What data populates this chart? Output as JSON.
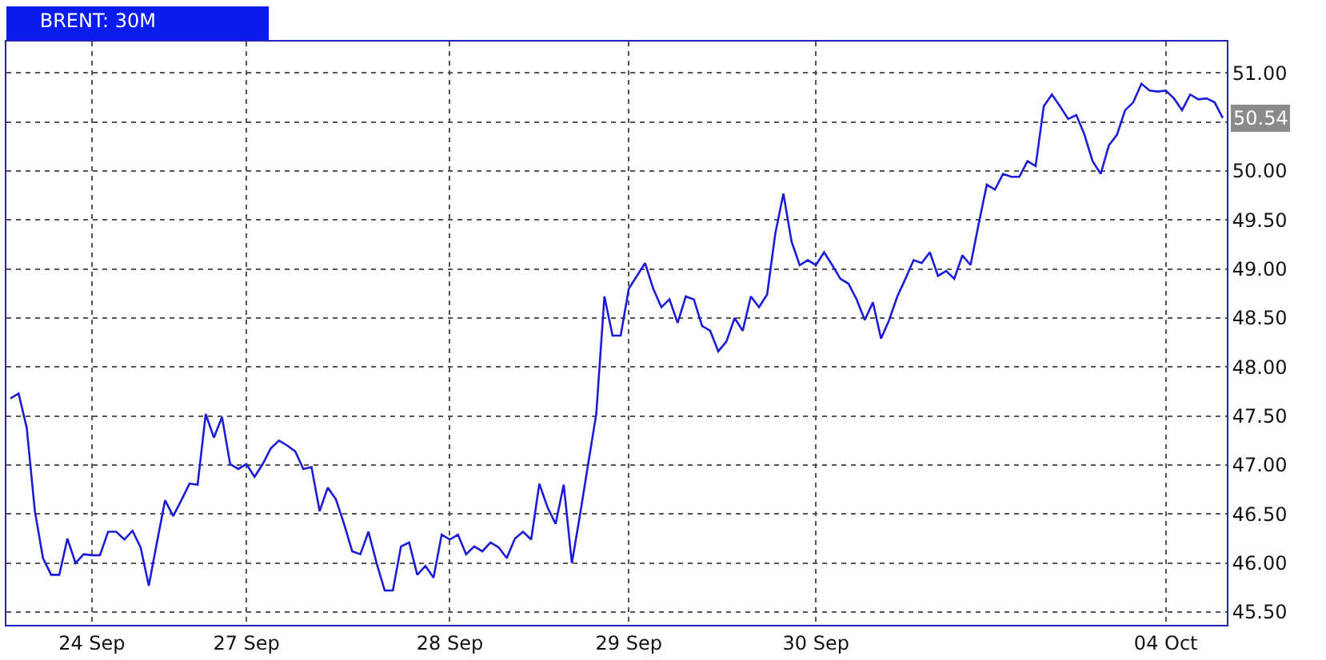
{
  "chart_data": {
    "type": "line",
    "title": "BRENT: 30M",
    "categories": [
      null,
      null,
      null,
      null,
      null,
      null,
      null,
      null,
      null,
      null,
      "24 Sep",
      null,
      null,
      null,
      null,
      null,
      null,
      null,
      null,
      null,
      null,
      null,
      null,
      null,
      null,
      null,
      null,
      null,
      null,
      "27 Sep",
      null,
      null,
      null,
      null,
      null,
      null,
      null,
      null,
      null,
      null,
      null,
      null,
      null,
      null,
      null,
      null,
      null,
      null,
      null,
      null,
      null,
      null,
      null,
      null,
      "28 Sep",
      null,
      null,
      null,
      null,
      null,
      null,
      null,
      null,
      null,
      null,
      null,
      null,
      null,
      null,
      null,
      null,
      null,
      null,
      null,
      null,
      null,
      "29 Sep",
      null,
      null,
      null,
      null,
      null,
      null,
      null,
      null,
      null,
      null,
      null,
      null,
      null,
      null,
      null,
      null,
      null,
      null,
      null,
      null,
      null,
      null,
      "30 Sep",
      null,
      null,
      null,
      null,
      null,
      null,
      null,
      null,
      null,
      null,
      null,
      null,
      null,
      null,
      null,
      null,
      null,
      null,
      null,
      null,
      null,
      null,
      null,
      null,
      null,
      null,
      null,
      null,
      null,
      null,
      null,
      null,
      null,
      null,
      null,
      null,
      null,
      null,
      null,
      null,
      null,
      null,
      "04 Oct",
      null,
      null,
      null,
      null,
      null,
      null,
      null
    ],
    "series": [
      {
        "color": "#1c1cd8",
        "values": [
          47.68,
          47.73,
          47.38,
          46.53,
          46.05,
          45.88,
          45.88,
          46.25,
          46.0,
          46.09,
          46.08,
          46.08,
          46.32,
          46.32,
          46.24,
          46.33,
          46.16,
          45.77,
          46.21,
          46.64,
          46.48,
          46.64,
          46.81,
          46.8,
          47.52,
          47.28,
          47.49,
          47.01,
          46.96,
          47.01,
          46.88,
          47.01,
          47.17,
          47.25,
          47.2,
          47.14,
          46.96,
          46.98,
          46.53,
          46.77,
          46.65,
          46.4,
          46.12,
          46.09,
          46.32,
          46.0,
          45.72,
          45.72,
          46.17,
          46.21,
          45.88,
          45.97,
          45.85,
          46.29,
          46.24,
          46.29,
          46.09,
          46.17,
          46.12,
          46.21,
          46.16,
          46.05,
          46.25,
          46.32,
          46.24,
          46.81,
          46.57,
          46.4,
          46.8,
          46.0,
          46.49,
          47.01,
          47.52,
          48.72,
          48.32,
          48.32,
          48.8,
          48.93,
          49.06,
          48.8,
          48.61,
          48.69,
          48.45,
          48.72,
          48.69,
          48.42,
          48.37,
          48.16,
          48.26,
          48.5,
          48.37,
          48.72,
          48.61,
          48.74,
          49.36,
          49.77,
          49.28,
          49.04,
          49.09,
          49.04,
          49.17,
          49.04,
          48.9,
          48.85,
          48.69,
          48.48,
          48.66,
          48.29,
          48.48,
          48.72,
          48.9,
          49.09,
          49.06,
          49.17,
          48.93,
          48.98,
          48.9,
          49.14,
          49.04,
          49.46,
          49.86,
          49.81,
          49.97,
          49.94,
          49.94,
          50.1,
          50.05,
          50.66,
          50.78,
          50.66,
          50.53,
          50.57,
          50.37,
          50.1,
          49.97,
          50.26,
          50.37,
          50.62,
          50.7,
          50.89,
          50.82,
          50.81,
          50.82,
          50.74,
          50.62,
          50.78,
          50.73,
          50.74,
          50.7,
          50.54
        ]
      }
    ],
    "ylim": [
      45.37,
      51.32
    ],
    "yticks": [
      {
        "value": 45.5,
        "label": "45.50"
      },
      {
        "value": 46,
        "label": "46.00"
      },
      {
        "value": 46.5,
        "label": "46.50"
      },
      {
        "value": 47,
        "label": "47.00"
      },
      {
        "value": 47.5,
        "label": "47.50"
      },
      {
        "value": 48,
        "label": "48.00"
      },
      {
        "value": 48.5,
        "label": "48.50"
      },
      {
        "value": 49,
        "label": "49.00"
      },
      {
        "value": 49.5,
        "label": "49.50"
      },
      {
        "value": 50,
        "label": "50.00"
      },
      {
        "value": 50.5,
        "label": null
      },
      {
        "value": 51,
        "label": "51.00"
      }
    ],
    "annotations": [
      {
        "text": "50.54",
        "y": 50.54
      }
    ],
    "grid": true,
    "marker": "none",
    "line_style": "solid"
  }
}
